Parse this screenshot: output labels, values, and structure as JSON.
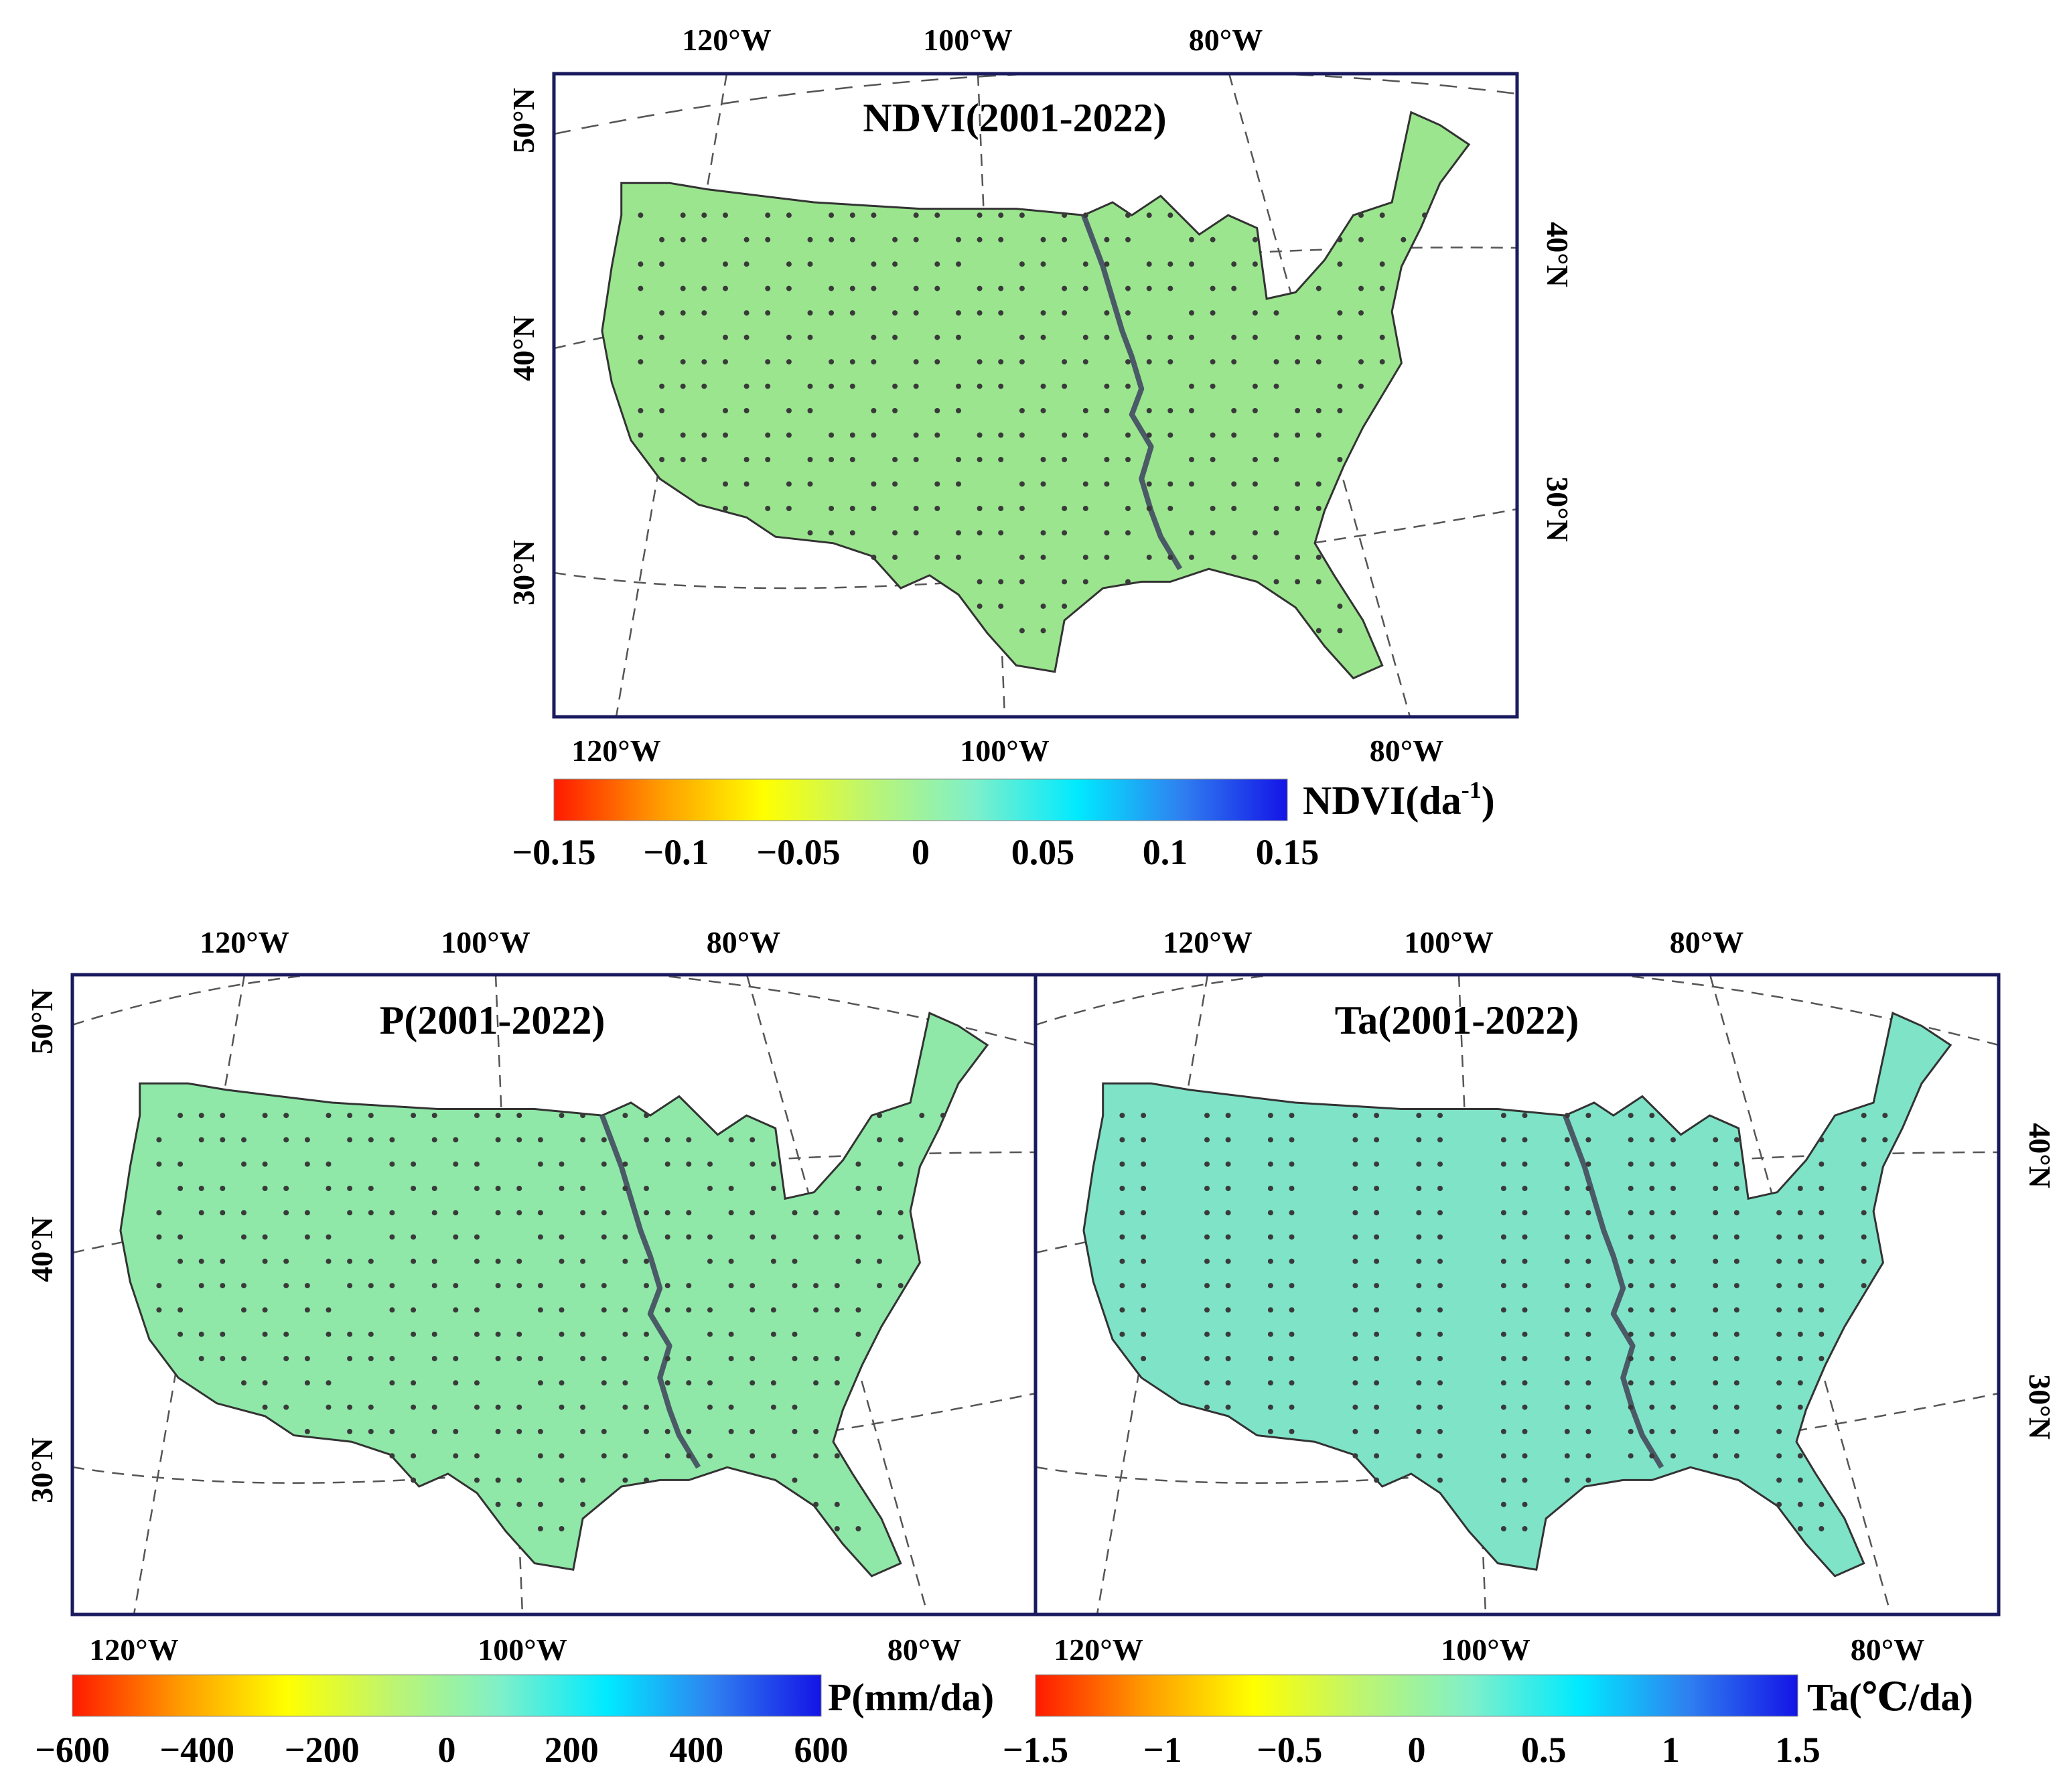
{
  "panels": [
    {
      "id": "ndvi",
      "title": "NDVI(2001-2022)",
      "top_lon_labels": [
        "120°W",
        "100°W",
        "80°W"
      ],
      "bottom_lon_labels": [
        "120°W",
        "100°W",
        "80°W"
      ],
      "left_lat_labels": [
        "50°N",
        "40°N",
        "30°N"
      ],
      "right_lat_labels": [
        "40°N",
        "30°N"
      ],
      "fill": "#9be58e"
    },
    {
      "id": "precip",
      "title": "P(2001-2022)",
      "top_lon_labels": [
        "120°W",
        "100°W",
        "80°W"
      ],
      "bottom_lon_labels": [
        "120°W",
        "100°W",
        "80°W"
      ],
      "left_lat_labels": [
        "50°N",
        "40°N",
        "30°N"
      ],
      "right_lat_labels": [],
      "fill": "#8fe8a8"
    },
    {
      "id": "temp",
      "title": "Ta(2001-2022)",
      "top_lon_labels": [
        "120°W",
        "100°W",
        "80°W"
      ],
      "bottom_lon_labels": [
        "120°W",
        "100°W",
        "80°W"
      ],
      "left_lat_labels": [],
      "right_lat_labels": [
        "40°N",
        "30°N"
      ],
      "fill": "#7fe3c8"
    }
  ],
  "colorbars": [
    {
      "id": "ndvi",
      "label_main": "NDVI(da",
      "label_sup": "-1",
      "label_end": ")",
      "ticks": [
        "−0.15",
        "−0.1",
        "−0.05",
        "0",
        "0.05",
        "0.1",
        "0.15"
      ]
    },
    {
      "id": "precip",
      "label": "P(mm/da)",
      "ticks": [
        "−600",
        "−400",
        "−200",
        "0",
        "200",
        "400",
        "600"
      ]
    },
    {
      "id": "temp",
      "label": "Ta(℃/da)",
      "ticks": [
        "−1.5",
        "−1",
        "−0.5",
        "0",
        "0.5",
        "1",
        "1.5"
      ]
    }
  ],
  "colorbar_stops": [
    "#ff1a00",
    "#ff9a00",
    "#ffff00",
    "#bdf571",
    "#7ff0c9",
    "#00eaff",
    "#2f7ff0",
    "#1414e6"
  ],
  "frame_color": "#1a1a5e",
  "river_color": "#4a5a66"
}
